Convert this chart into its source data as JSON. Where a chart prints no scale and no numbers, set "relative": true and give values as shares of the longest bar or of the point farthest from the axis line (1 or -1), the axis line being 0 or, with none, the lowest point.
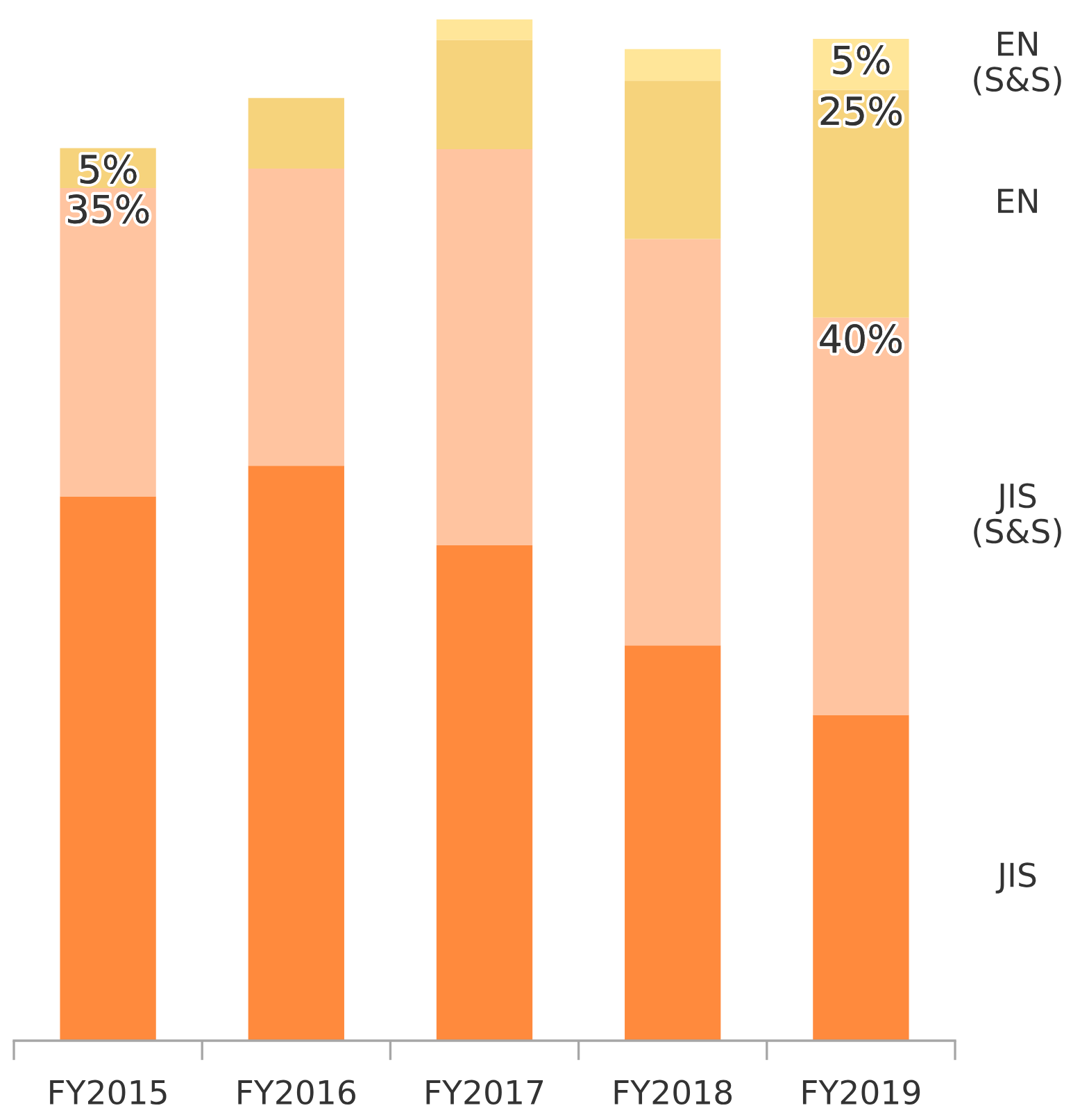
{
  "chart_data": {
    "type": "bar",
    "stacked": true,
    "relative": true,
    "categories": [
      "FY2015",
      "FY2016",
      "FY2017",
      "FY2018",
      "FY2019"
    ],
    "series": [
      {
        "name": "JIS",
        "color": "#ff8a3d",
        "values": [
          0.533,
          0.563,
          0.485,
          0.387,
          0.319
        ]
      },
      {
        "name": "JIS (S&S)",
        "color": "#ffc4a0",
        "values": [
          0.302,
          0.291,
          0.388,
          0.398,
          0.389
        ]
      },
      {
        "name": "EN",
        "color": "#f6d37c",
        "values": [
          0.039,
          0.069,
          0.107,
          0.155,
          0.223
        ]
      },
      {
        "name": "EN (S&S)",
        "color": "#ffe699",
        "values": [
          null,
          null,
          0.02,
          0.031,
          0.05
        ]
      }
    ],
    "annotations": [
      {
        "text": "5%",
        "x": "FY2015",
        "y": 0.874
      },
      {
        "text": "35%",
        "x": "FY2015",
        "y": 0.835
      },
      {
        "text": "5%",
        "x": "FY2019",
        "y": 0.981
      },
      {
        "text": "25%",
        "x": "FY2019",
        "y": 0.931
      },
      {
        "text": "40%",
        "x": "FY2019",
        "y": 0.708
      }
    ]
  }
}
